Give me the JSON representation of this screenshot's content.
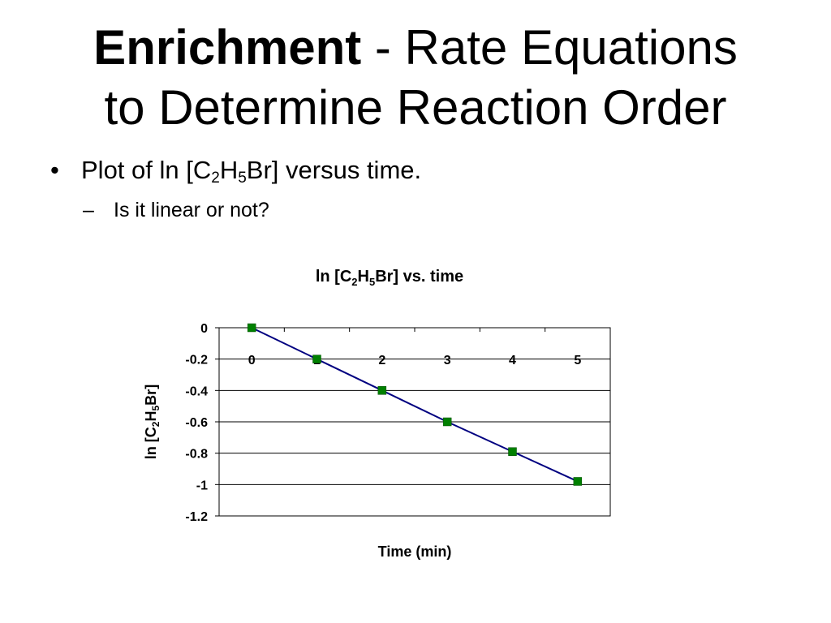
{
  "slide": {
    "title_bold": "Enrichment",
    "title_rest_line1": " - Rate Equations",
    "title_line2": "to Determine Reaction Order",
    "bullet": {
      "marker": "•",
      "prefix": "Plot of  ln [C",
      "sub1": "2",
      "mid": "H",
      "sub2": "5",
      "suffix": "Br] versus time."
    },
    "sub_bullet": {
      "marker": "–",
      "text": "Is it linear or not?"
    }
  },
  "chart_data": {
    "type": "line",
    "title": {
      "prefix": "ln [C",
      "sub1": "2",
      "mid": "H",
      "sub2": "5",
      "suffix": "Br] vs. time"
    },
    "xlabel": "Time (min)",
    "ylabel": {
      "prefix": "ln [C",
      "sub1": "2",
      "mid": "H",
      "sub2": "5",
      "suffix": "Br]"
    },
    "x_ticks": [
      "0",
      "1",
      "2",
      "3",
      "4",
      "5"
    ],
    "y_ticks": [
      "0",
      "-0.2",
      "-0.4",
      "-0.6",
      "-0.8",
      "-1",
      "-1.2"
    ],
    "x": [
      0,
      1,
      2,
      3,
      4,
      5
    ],
    "y": [
      0,
      -0.2,
      -0.4,
      -0.6,
      -0.79,
      -0.98
    ],
    "xlim": [
      -0.5,
      5.5
    ],
    "ylim": [
      -1.2,
      0
    ],
    "grid": true,
    "line_color": "#000080",
    "marker_color": "#008000",
    "marker": "square"
  }
}
